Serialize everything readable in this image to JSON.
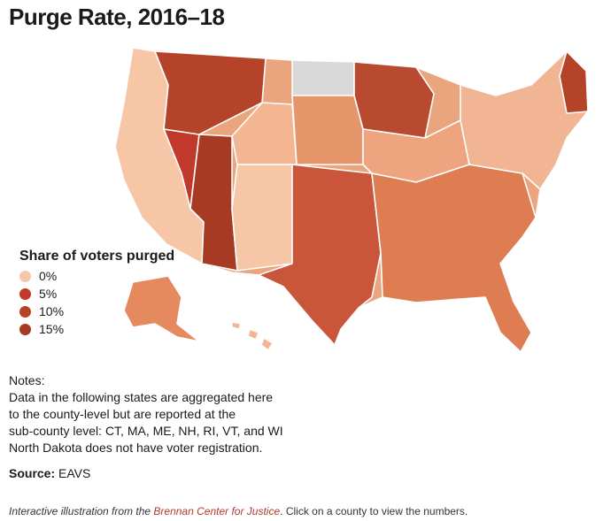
{
  "title": "Purge Rate, 2016–18",
  "legend": {
    "title": "Share of voters purged",
    "items": [
      {
        "label": "0%",
        "color": "#f6c6a7"
      },
      {
        "label": "5%",
        "color": "#c0392b"
      },
      {
        "label": "10%",
        "color": "#b5432a"
      },
      {
        "label": "15%",
        "color": "#a63a22"
      }
    ]
  },
  "notes": {
    "heading": "Notes:",
    "lines": [
      "Data in the following states are aggregated here",
      "to the county-level but are reported at the",
      "sub-county level: CT, MA, ME, NH, RI, VT, and WI",
      "North Dakota does not have voter registration."
    ]
  },
  "source": {
    "label": "Source:",
    "value": "EAVS"
  },
  "credit": {
    "prefix": "Interactive illustration from the ",
    "link": "Brennan Center for Justice",
    "suffix": ". Click on a county to view the numbers."
  },
  "map": {
    "palette": {
      "light": "#f6c6a7",
      "mid": "#e48a5e",
      "dark": "#c0392b",
      "darker": "#a63a22",
      "nodata": "#d9d9d9"
    }
  }
}
